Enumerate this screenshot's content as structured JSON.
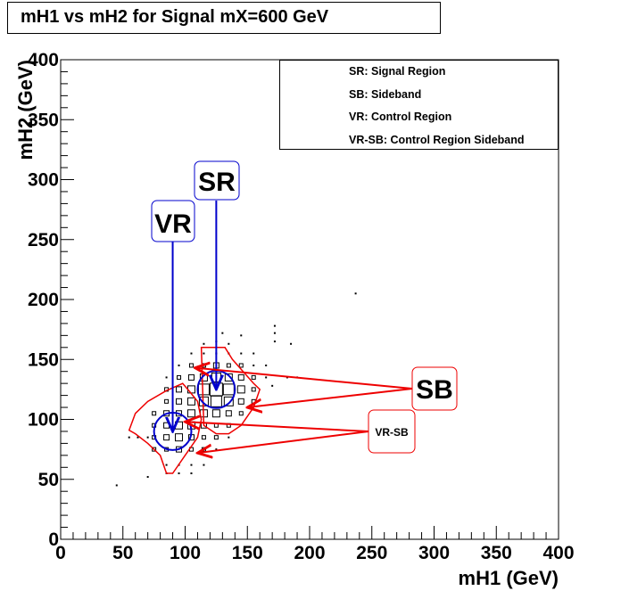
{
  "title": "mH1 vs mH2 for Signal mX=600 GeV",
  "legend": {
    "entries": [
      "SR: Signal Region",
      "SB: Sideband",
      "VR: Control Region",
      "VR-SB: Control Region  Sideband"
    ]
  },
  "annotations": {
    "sr": "SR",
    "vr": "VR",
    "sb": "SB",
    "vrsb": "VR-SB"
  },
  "colors": {
    "signal_regions": "#0000cc",
    "sidebands": "#ee0000",
    "markers": "#000000"
  },
  "chart_data": {
    "type": "scatter",
    "title": "mH1 vs mH2 for Signal mX=600 GeV",
    "xlabel": "mH1 (GeV)",
    "ylabel": "mH2 (GeV)",
    "xlim": [
      0,
      400
    ],
    "ylim": [
      0,
      400
    ],
    "x_ticks": [
      0,
      50,
      100,
      150,
      200,
      250,
      300,
      350,
      400
    ],
    "y_ticks": [
      0,
      50,
      100,
      150,
      200,
      250,
      300,
      350,
      400
    ],
    "grid": false,
    "legend_position": "top-right",
    "regions": [
      {
        "label": "SR",
        "center": [
          125,
          125
        ],
        "shape": "circle"
      },
      {
        "label": "VR",
        "center": [
          90,
          90
        ],
        "shape": "circle"
      },
      {
        "label": "SB",
        "center": [
          125,
          125
        ],
        "shape": "annulus"
      },
      {
        "label": "VR-SB",
        "center": [
          90,
          90
        ],
        "shape": "annulus"
      }
    ],
    "bins": [
      {
        "x": 45,
        "y": 45,
        "w": 0
      },
      {
        "x": 70,
        "y": 52,
        "w": 0
      },
      {
        "x": 55,
        "y": 85,
        "w": 0
      },
      {
        "x": 62,
        "y": 85,
        "w": 0
      },
      {
        "x": 70,
        "y": 85,
        "w": 0
      },
      {
        "x": 85,
        "y": 55,
        "w": 0
      },
      {
        "x": 95,
        "y": 55,
        "w": 0
      },
      {
        "x": 105,
        "y": 55,
        "w": 0
      },
      {
        "x": 85,
        "y": 62,
        "w": 0
      },
      {
        "x": 95,
        "y": 62,
        "w": 0
      },
      {
        "x": 105,
        "y": 62,
        "w": 0
      },
      {
        "x": 115,
        "y": 62,
        "w": 0
      },
      {
        "x": 75,
        "y": 75,
        "w": 1
      },
      {
        "x": 85,
        "y": 75,
        "w": 1
      },
      {
        "x": 95,
        "y": 75,
        "w": 2
      },
      {
        "x": 105,
        "y": 75,
        "w": 1
      },
      {
        "x": 115,
        "y": 75,
        "w": 1
      },
      {
        "x": 125,
        "y": 75,
        "w": 0
      },
      {
        "x": 75,
        "y": 85,
        "w": 1
      },
      {
        "x": 85,
        "y": 85,
        "w": 2
      },
      {
        "x": 95,
        "y": 85,
        "w": 3
      },
      {
        "x": 105,
        "y": 85,
        "w": 2
      },
      {
        "x": 115,
        "y": 85,
        "w": 1
      },
      {
        "x": 125,
        "y": 85,
        "w": 1
      },
      {
        "x": 135,
        "y": 85,
        "w": 0
      },
      {
        "x": 75,
        "y": 95,
        "w": 1
      },
      {
        "x": 85,
        "y": 95,
        "w": 2
      },
      {
        "x": 95,
        "y": 95,
        "w": 3
      },
      {
        "x": 105,
        "y": 95,
        "w": 3
      },
      {
        "x": 115,
        "y": 95,
        "w": 2
      },
      {
        "x": 125,
        "y": 95,
        "w": 1
      },
      {
        "x": 135,
        "y": 95,
        "w": 1
      },
      {
        "x": 75,
        "y": 105,
        "w": 1
      },
      {
        "x": 85,
        "y": 105,
        "w": 2
      },
      {
        "x": 95,
        "y": 105,
        "w": 2
      },
      {
        "x": 105,
        "y": 105,
        "w": 3
      },
      {
        "x": 115,
        "y": 105,
        "w": 3
      },
      {
        "x": 125,
        "y": 105,
        "w": 3
      },
      {
        "x": 135,
        "y": 105,
        "w": 2
      },
      {
        "x": 145,
        "y": 105,
        "w": 1
      },
      {
        "x": 85,
        "y": 115,
        "w": 1
      },
      {
        "x": 95,
        "y": 115,
        "w": 2
      },
      {
        "x": 105,
        "y": 115,
        "w": 3
      },
      {
        "x": 115,
        "y": 115,
        "w": 4
      },
      {
        "x": 125,
        "y": 115,
        "w": 5
      },
      {
        "x": 135,
        "y": 115,
        "w": 4
      },
      {
        "x": 145,
        "y": 115,
        "w": 2
      },
      {
        "x": 155,
        "y": 115,
        "w": 1
      },
      {
        "x": 85,
        "y": 125,
        "w": 1
      },
      {
        "x": 95,
        "y": 125,
        "w": 2
      },
      {
        "x": 105,
        "y": 125,
        "w": 3
      },
      {
        "x": 115,
        "y": 125,
        "w": 5
      },
      {
        "x": 125,
        "y": 125,
        "w": 6
      },
      {
        "x": 135,
        "y": 125,
        "w": 5
      },
      {
        "x": 145,
        "y": 125,
        "w": 3
      },
      {
        "x": 155,
        "y": 125,
        "w": 1
      },
      {
        "x": 85,
        "y": 135,
        "w": 0
      },
      {
        "x": 95,
        "y": 135,
        "w": 1
      },
      {
        "x": 105,
        "y": 135,
        "w": 2
      },
      {
        "x": 115,
        "y": 135,
        "w": 3
      },
      {
        "x": 125,
        "y": 135,
        "w": 4
      },
      {
        "x": 135,
        "y": 135,
        "w": 3
      },
      {
        "x": 145,
        "y": 135,
        "w": 2
      },
      {
        "x": 155,
        "y": 135,
        "w": 1
      },
      {
        "x": 165,
        "y": 135,
        "w": 0
      },
      {
        "x": 95,
        "y": 145,
        "w": 0
      },
      {
        "x": 105,
        "y": 145,
        "w": 1
      },
      {
        "x": 115,
        "y": 145,
        "w": 1
      },
      {
        "x": 125,
        "y": 145,
        "w": 2
      },
      {
        "x": 135,
        "y": 145,
        "w": 1
      },
      {
        "x": 145,
        "y": 145,
        "w": 1
      },
      {
        "x": 155,
        "y": 145,
        "w": 0
      },
      {
        "x": 165,
        "y": 145,
        "w": 0
      },
      {
        "x": 105,
        "y": 155,
        "w": 0
      },
      {
        "x": 115,
        "y": 155,
        "w": 0
      },
      {
        "x": 125,
        "y": 155,
        "w": 0
      },
      {
        "x": 135,
        "y": 155,
        "w": 0
      },
      {
        "x": 145,
        "y": 155,
        "w": 0
      },
      {
        "x": 155,
        "y": 155,
        "w": 0
      },
      {
        "x": 115,
        "y": 163,
        "w": 0
      },
      {
        "x": 125,
        "y": 165,
        "w": 0
      },
      {
        "x": 135,
        "y": 163,
        "w": 0
      },
      {
        "x": 130,
        "y": 172,
        "w": 0
      },
      {
        "x": 145,
        "y": 170,
        "w": 0
      },
      {
        "x": 172,
        "y": 172,
        "w": 0
      },
      {
        "x": 172,
        "y": 178,
        "w": 0
      },
      {
        "x": 172,
        "y": 165,
        "w": 0
      },
      {
        "x": 185,
        "y": 163,
        "w": 0
      },
      {
        "x": 182,
        "y": 135,
        "w": 0
      },
      {
        "x": 170,
        "y": 128,
        "w": 0
      },
      {
        "x": 190,
        "y": 135,
        "w": 0
      },
      {
        "x": 237,
        "y": 205,
        "w": 0
      }
    ]
  }
}
